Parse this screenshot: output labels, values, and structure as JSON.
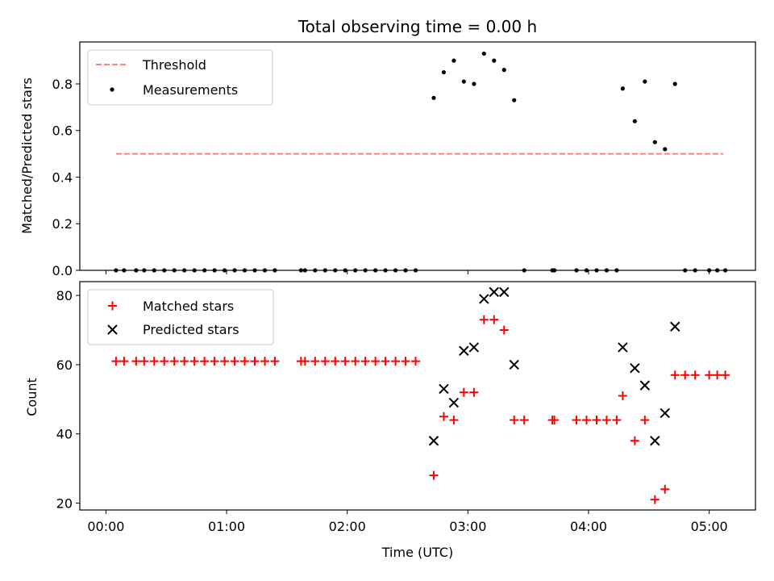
{
  "chart_data": [
    {
      "type": "scatter",
      "title": "Total observing time = 0.00 h",
      "xlabel": "",
      "ylabel": "Matched/Predicted stars",
      "xlim": [
        "23:47",
        "05:23"
      ],
      "ylim": [
        0,
        0.98
      ],
      "yticks": [
        "0.0",
        "0.2",
        "0.4",
        "0.6",
        "0.8"
      ],
      "grid": false,
      "legend": "top-left",
      "threshold": {
        "name": "Threshold",
        "value": 0.5,
        "x_start": "00:05",
        "x_end": "05:07",
        "color": "#ff7f7f",
        "style": "dashed"
      },
      "series": [
        {
          "name": "Measurements",
          "color": "#000000",
          "marker": "dot",
          "points": [
            [
              "00:05",
              0
            ],
            [
              "00:09",
              0
            ],
            [
              "00:15",
              0
            ],
            [
              "00:19",
              0
            ],
            [
              "00:24",
              0
            ],
            [
              "00:29",
              0
            ],
            [
              "00:34",
              0
            ],
            [
              "00:39",
              0
            ],
            [
              "00:44",
              0
            ],
            [
              "00:49",
              0
            ],
            [
              "00:54",
              0
            ],
            [
              "00:59",
              0
            ],
            [
              "01:04",
              0
            ],
            [
              "01:09",
              0
            ],
            [
              "01:14",
              0
            ],
            [
              "01:19",
              0
            ],
            [
              "01:24",
              0
            ],
            [
              "01:37",
              0
            ],
            [
              "01:39",
              0
            ],
            [
              "01:44",
              0
            ],
            [
              "01:49",
              0
            ],
            [
              "01:54",
              0
            ],
            [
              "01:59",
              0
            ],
            [
              "02:04",
              0
            ],
            [
              "02:09",
              0
            ],
            [
              "02:14",
              0
            ],
            [
              "02:19",
              0
            ],
            [
              "02:24",
              0
            ],
            [
              "02:29",
              0
            ],
            [
              "02:34",
              0
            ],
            [
              "02:43",
              0.74
            ],
            [
              "02:48",
              0.85
            ],
            [
              "02:53",
              0.9
            ],
            [
              "02:58",
              0.81
            ],
            [
              "03:03",
              0.8
            ],
            [
              "03:08",
              0.93
            ],
            [
              "03:13",
              0.9
            ],
            [
              "03:18",
              0.86
            ],
            [
              "03:23",
              0.73
            ],
            [
              "03:28",
              0
            ],
            [
              "03:42",
              0
            ],
            [
              "03:43",
              0
            ],
            [
              "03:54",
              0
            ],
            [
              "03:59",
              0
            ],
            [
              "04:04",
              0
            ],
            [
              "04:09",
              0
            ],
            [
              "04:14",
              0
            ],
            [
              "04:17",
              0.78
            ],
            [
              "04:23",
              0.64
            ],
            [
              "04:28",
              0.81
            ],
            [
              "04:33",
              0.55
            ],
            [
              "04:38",
              0.52
            ],
            [
              "04:43",
              0.8
            ],
            [
              "04:48",
              0
            ],
            [
              "04:53",
              0
            ],
            [
              "05:00",
              0
            ],
            [
              "05:04",
              0
            ],
            [
              "05:08",
              0
            ]
          ]
        }
      ]
    },
    {
      "type": "scatter",
      "title": "",
      "xlabel": "Time (UTC)",
      "ylabel": "Count",
      "xlim": [
        "23:47",
        "05:23"
      ],
      "ylim": [
        18,
        84
      ],
      "xticks": [
        "00:00",
        "01:00",
        "02:00",
        "03:00",
        "04:00",
        "05:00"
      ],
      "yticks": [
        "20",
        "40",
        "60",
        "80"
      ],
      "grid": false,
      "legend": "top-left",
      "series": [
        {
          "name": "Matched stars",
          "color": "#ff0000",
          "marker": "plus",
          "points": [
            [
              "00:05",
              61
            ],
            [
              "00:09",
              61
            ],
            [
              "00:15",
              61
            ],
            [
              "00:19",
              61
            ],
            [
              "00:24",
              61
            ],
            [
              "00:29",
              61
            ],
            [
              "00:34",
              61
            ],
            [
              "00:39",
              61
            ],
            [
              "00:44",
              61
            ],
            [
              "00:49",
              61
            ],
            [
              "00:54",
              61
            ],
            [
              "00:59",
              61
            ],
            [
              "01:04",
              61
            ],
            [
              "01:09",
              61
            ],
            [
              "01:14",
              61
            ],
            [
              "01:19",
              61
            ],
            [
              "01:24",
              61
            ],
            [
              "01:37",
              61
            ],
            [
              "01:39",
              61
            ],
            [
              "01:44",
              61
            ],
            [
              "01:49",
              61
            ],
            [
              "01:54",
              61
            ],
            [
              "01:59",
              61
            ],
            [
              "02:04",
              61
            ],
            [
              "02:09",
              61
            ],
            [
              "02:14",
              61
            ],
            [
              "02:19",
              61
            ],
            [
              "02:24",
              61
            ],
            [
              "02:29",
              61
            ],
            [
              "02:34",
              61
            ],
            [
              "02:43",
              28
            ],
            [
              "02:48",
              45
            ],
            [
              "02:53",
              44
            ],
            [
              "02:58",
              52
            ],
            [
              "03:03",
              52
            ],
            [
              "03:08",
              73
            ],
            [
              "03:13",
              73
            ],
            [
              "03:18",
              70
            ],
            [
              "03:23",
              44
            ],
            [
              "03:28",
              44
            ],
            [
              "03:42",
              44
            ],
            [
              "03:43",
              44
            ],
            [
              "03:54",
              44
            ],
            [
              "03:59",
              44
            ],
            [
              "04:04",
              44
            ],
            [
              "04:09",
              44
            ],
            [
              "04:14",
              44
            ],
            [
              "04:17",
              51
            ],
            [
              "04:23",
              38
            ],
            [
              "04:28",
              44
            ],
            [
              "04:33",
              21
            ],
            [
              "04:38",
              24
            ],
            [
              "04:43",
              57
            ],
            [
              "04:48",
              57
            ],
            [
              "04:53",
              57
            ],
            [
              "05:00",
              57
            ],
            [
              "05:04",
              57
            ],
            [
              "05:08",
              57
            ]
          ]
        },
        {
          "name": "Predicted stars",
          "color": "#000000",
          "marker": "x",
          "points": [
            [
              "02:43",
              38
            ],
            [
              "02:48",
              53
            ],
            [
              "02:53",
              49
            ],
            [
              "02:58",
              64
            ],
            [
              "03:03",
              65
            ],
            [
              "03:08",
              79
            ],
            [
              "03:13",
              81
            ],
            [
              "03:18",
              81
            ],
            [
              "03:23",
              60
            ],
            [
              "04:17",
              65
            ],
            [
              "04:23",
              59
            ],
            [
              "04:28",
              54
            ],
            [
              "04:33",
              38
            ],
            [
              "04:38",
              46
            ],
            [
              "04:43",
              71
            ]
          ]
        }
      ]
    }
  ]
}
